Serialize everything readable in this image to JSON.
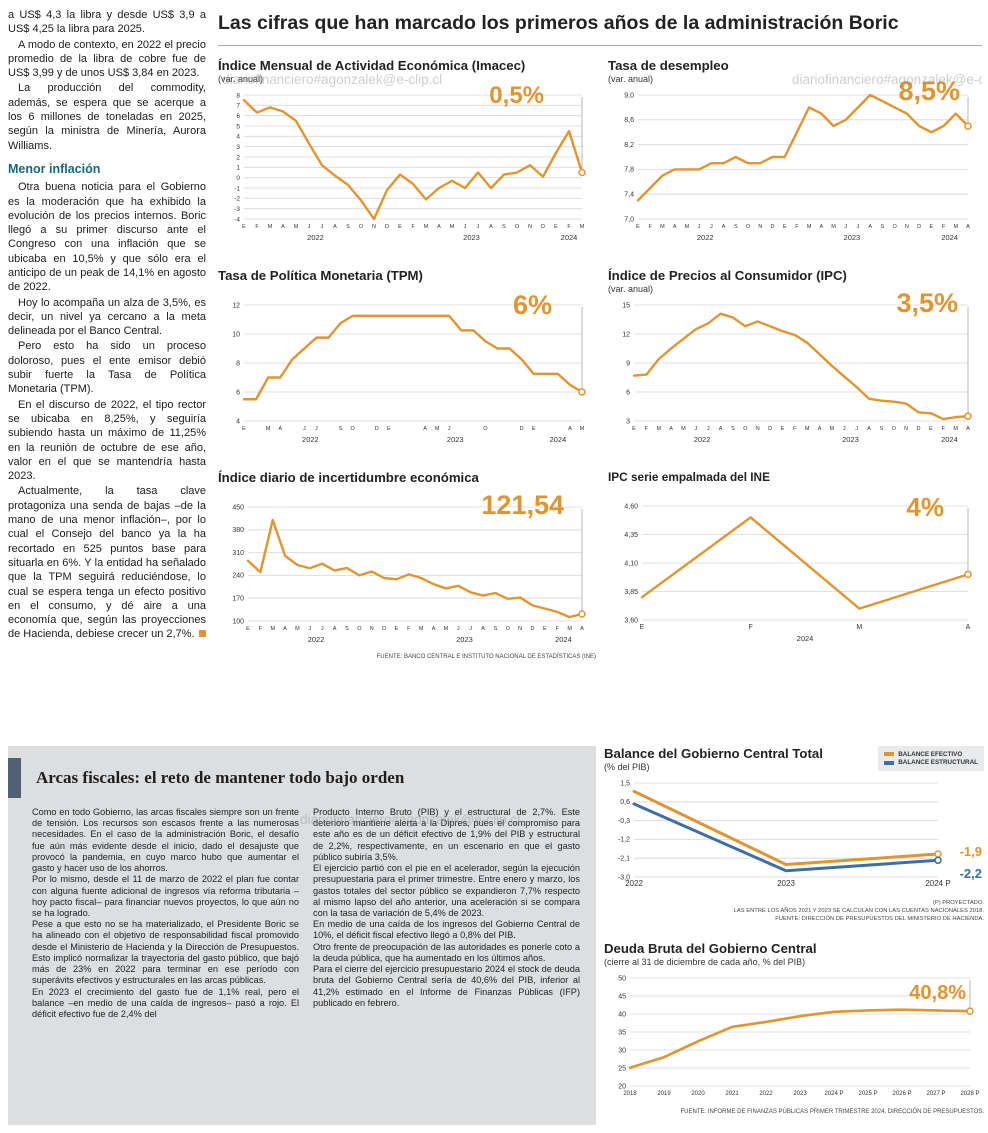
{
  "page": {
    "main_title": "Las cifras que han marcado los primeros años de la administración Boric",
    "watermark": "diariofinanciero#agonzalek@e-clip.cl"
  },
  "left_column": {
    "paragraphs_top": [
      "a US$ 4,3 la libra y desde US$ 3,9 a US$ 4,25 la libra para 2025.",
      "A modo de contexto, en 2022 el precio promedio de la libra de cobre fue de US$ 3,99 y de unos US$ 3,84 en 2023.",
      "La producción del commodity, además, se espera que se acerque a los 6 millones de toneladas en 2025, según la ministra de Minería, Aurora Williams."
    ],
    "header": "Menor inflación",
    "paragraphs_bottom": [
      "Otra buena noticia para el Gobierno es la moderación que ha exhibido la evolución de los precios internos. Boric llegó a su primer discurso ante el Congreso con una inflación que se ubicaba en 10,5% y que sólo era el anticipo de un peak de 14,1% en agosto de 2022.",
      "Hoy lo acompaña un alza de 3,5%, es decir, un nivel ya cercano a la meta delineada por el Banco Central.",
      "Pero esto ha sido un proceso doloroso, pues el ente emisor debió subir fuerte la Tasa de Política Monetaria (TPM).",
      "En el discurso de 2022, el tipo rector se ubicaba en 8,25%, y seguiría subiendo hasta un máximo de 11,25% en la reunión de octubre de ese año, valor en el que se mantendría hasta 2023.",
      "Actualmente, la tasa clave protagoniza una senda de bajas –de la mano de una menor inflación–, por lo cual el Consejo del banco ya la ha recortado en 525 puntos base para situarla en 6%. Y la entidad ha señalado que la TPM seguirá reduciéndose, lo cual se espera tenga un efecto positivo en el consumo, y dé aire a una economía que, según las proyecciones de Hacienda, debiese crecer un 2,7%."
    ]
  },
  "fiscal_box": {
    "title": "Arcas fiscales: el reto de mantener todo bajo orden",
    "col1": [
      "Como en todo Gobierno, las arcas fiscales siempre son un frente de tensión. Los recursos son escasos frente a las numerosas necesidades. En el caso de la administración Boric, el desafío fue aún más evidente desde el inicio, dado el desajuste que provocó la pandemia, en cuyo marco hubo que aumentar el gasto y hacer uso de los ahorros.",
      "Por lo mismo, desde el 11 de marzo de 2022 el plan fue contar con alguna fuente adicional de ingresos vía reforma tributaria –hoy pacto fiscal– para financiar nuevos proyectos, lo que aún no se ha logrado.",
      "Pese a que esto no se ha materializado, el Presidente Boric se ha alineado con el objetivo de responsabilidad fiscal promovido desde el Ministerio de Hacienda y la Dirección de Presupuestos. Esto implicó normalizar la trayectoria del gasto público, que bajó más de 23% en 2022 para terminar en ese período con superávits efectivos y estructurales en las arcas públicas.",
      "En 2023 el crecimiento del gasto fue de 1,1% real, pero el balance –en medio de una caída de ingresos– pasó a rojo. El déficit efectivo fue de 2,4% del"
    ],
    "col2": [
      "Producto Interno Bruto (PIB) y el estructural de 2,7%. Este deterioro mantiene alerta a la Dipres, pues el compromiso para este año es de un déficit efectivo de 1,9% del PIB y estructural de 2,2%, respectivamente, en un escenario en que el gasto público subiría 3,5%.",
      "El ejercicio partió con el pie en el acelerador, según la ejecución presupuestaria para el primer trimestre. Entre enero y marzo, los gastos totales del sector público se expandieron 7,7% respecto al mismo lapso del año anterior, una aceleración si se compara con la tasa de variación de 5,4% de 2023.",
      "En medio de una caída de los ingresos del Gobierno Central de 10%, el déficit fiscal efectivo llegó a 0,8% del PIB.",
      "Otro frente de preocupación de las autoridades es ponerle coto a la deuda pública, que ha aumentado en los últimos años.",
      "Para el cierre del ejercicio presupuestario 2024 el stock de deuda bruta del Gobierno Central sería de 40,6% del PIB, inferior al 41,2% estimado en el Informe de Finanzas Públicas (IFP) publicado en febrero."
    ]
  },
  "colors": {
    "orange": "#df9530",
    "blue": "#3d6ea5",
    "teal": "#15687c",
    "slate": "#4f6173"
  },
  "chart_data": [
    {
      "type": "line",
      "title": "Índice Mensual de Actividad Económica (Imacec)",
      "subtitle": "(var. anual)",
      "highlight": "0,5%",
      "ylim": [
        -4,
        8
      ],
      "ml": 26,
      "yfs": 6.5,
      "yticks": [
        {
          "v": 8,
          "label": "8"
        },
        {
          "v": 7,
          "label": "7"
        },
        {
          "v": 6,
          "label": "6"
        },
        {
          "v": 5,
          "label": "5"
        },
        {
          "v": 4,
          "label": "4"
        },
        {
          "v": 3,
          "label": "3"
        },
        {
          "v": 2,
          "label": "2"
        },
        {
          "v": 1,
          "label": "1"
        },
        {
          "v": 0,
          "label": "0"
        },
        {
          "v": -1,
          "label": "-1"
        },
        {
          "v": -2,
          "label": "-2"
        },
        {
          "v": -3,
          "label": "-3"
        },
        {
          "v": -4,
          "label": "-4"
        }
      ],
      "x_labels": [
        "E",
        "F",
        "M",
        "A",
        "M",
        "J",
        "J",
        "A",
        "S",
        "O",
        "N",
        "D",
        "E",
        "F",
        "M",
        "A",
        "M",
        "J",
        "J",
        "A",
        "S",
        "O",
        "N",
        "D",
        "E",
        "F",
        "M"
      ],
      "years": [
        {
          "l": "2022",
          "s": 0,
          "e": 11
        },
        {
          "l": "2023",
          "s": 12,
          "e": 23
        },
        {
          "l": "2024",
          "s": 24,
          "e": 26
        }
      ],
      "series": [
        {
          "name": "Imacec",
          "color": "#df9530",
          "values": [
            7.5,
            6.3,
            6.8,
            6.4,
            5.5,
            3.3,
            1.2,
            0.2,
            -0.7,
            -2.2,
            -4.0,
            -1.2,
            0.3,
            -0.6,
            -2.1,
            -1.0,
            -0.3,
            -1.0,
            0.5,
            -1.0,
            0.3,
            0.5,
            1.2,
            0.1,
            2.4,
            4.5,
            0.5
          ]
        }
      ]
    },
    {
      "type": "line",
      "title": "Tasa de desempleo",
      "subtitle": "(var. anual)",
      "highlight": "8,5%",
      "ylim": [
        7.0,
        9.0
      ],
      "ml": 30,
      "yticks": [
        {
          "v": 9.0,
          "label": "9,0"
        },
        {
          "v": 8.6,
          "label": "8,6"
        },
        {
          "v": 8.2,
          "label": "8,2"
        },
        {
          "v": 7.8,
          "label": "7,8"
        },
        {
          "v": 7.4,
          "label": "7,4"
        },
        {
          "v": 7.0,
          "label": "7,0"
        }
      ],
      "x_labels": [
        "E",
        "F",
        "M",
        "A",
        "M",
        "J",
        "J",
        "A",
        "S",
        "O",
        "N",
        "D",
        "E",
        "F",
        "M",
        "A",
        "M",
        "J",
        "J",
        "A",
        "S",
        "O",
        "N",
        "D",
        "E",
        "F",
        "M",
        "A"
      ],
      "years": [
        {
          "l": "2022",
          "s": 0,
          "e": 11
        },
        {
          "l": "2023",
          "s": 12,
          "e": 23
        },
        {
          "l": "2024",
          "s": 24,
          "e": 27
        }
      ],
      "series": [
        {
          "name": "Tasa de desempleo",
          "color": "#df9530",
          "values": [
            7.3,
            7.5,
            7.7,
            7.8,
            7.8,
            7.8,
            7.9,
            7.9,
            8.0,
            7.9,
            7.9,
            8.0,
            8.0,
            8.4,
            8.8,
            8.7,
            8.5,
            8.6,
            8.8,
            9.0,
            8.9,
            8.8,
            8.7,
            8.5,
            8.4,
            8.5,
            8.7,
            8.5
          ]
        }
      ]
    },
    {
      "type": "line",
      "title": "Tasa de Política Monetaria (TPM)",
      "highlight": "6%",
      "ylim": [
        4,
        12
      ],
      "ml": 26,
      "yticks": [
        {
          "v": 12,
          "label": "12"
        },
        {
          "v": 10,
          "label": "10"
        },
        {
          "v": 8,
          "label": "8"
        },
        {
          "v": 6,
          "label": "6"
        },
        {
          "v": 4,
          "label": "4"
        }
      ],
      "x_labels": [
        "E",
        "",
        "M",
        "A",
        "",
        "J",
        "J",
        "",
        "S",
        "O",
        "",
        "D",
        "E",
        "",
        "",
        "A",
        "M",
        "J",
        "",
        "",
        "O",
        "",
        "",
        "D",
        "E",
        "",
        "",
        "A",
        "M"
      ],
      "years": [
        {
          "l": "2022",
          "s": 0,
          "e": 11
        },
        {
          "l": "2023",
          "s": 12,
          "e": 23
        },
        {
          "l": "2024",
          "s": 24,
          "e": 28
        }
      ],
      "series": [
        {
          "name": "TPM",
          "color": "#df9530",
          "values": [
            5.5,
            5.5,
            7.0,
            7.0,
            8.25,
            9.0,
            9.75,
            9.75,
            10.75,
            11.25,
            11.25,
            11.25,
            11.25,
            11.25,
            11.25,
            11.25,
            11.25,
            11.25,
            10.25,
            10.25,
            9.5,
            9.0,
            9.0,
            8.25,
            7.25,
            7.25,
            7.25,
            6.5,
            6.0
          ]
        }
      ]
    },
    {
      "type": "line",
      "title": "Índice de Precios al Consumidor (IPC)",
      "subtitle": "(var. anual)",
      "highlight": "3,5%",
      "ylim": [
        3,
        15
      ],
      "ml": 26,
      "yticks": [
        {
          "v": 15,
          "label": "15"
        },
        {
          "v": 12,
          "label": "12"
        },
        {
          "v": 9,
          "label": "9"
        },
        {
          "v": 6,
          "label": "6"
        },
        {
          "v": 3,
          "label": "3"
        }
      ],
      "x_labels": [
        "E",
        "F",
        "M",
        "A",
        "M",
        "J",
        "J",
        "A",
        "S",
        "O",
        "N",
        "D",
        "E",
        "F",
        "M",
        "A",
        "M",
        "J",
        "J",
        "A",
        "S",
        "O",
        "N",
        "D",
        "E",
        "F",
        "M",
        "A"
      ],
      "years": [
        {
          "l": "2022",
          "s": 0,
          "e": 11
        },
        {
          "l": "2023",
          "s": 12,
          "e": 23
        },
        {
          "l": "2024",
          "s": 24,
          "e": 27
        }
      ],
      "series": [
        {
          "name": "IPC",
          "color": "#df9530",
          "values": [
            7.7,
            7.8,
            9.4,
            10.5,
            11.5,
            12.5,
            13.1,
            14.1,
            13.7,
            12.8,
            13.3,
            12.8,
            12.3,
            11.9,
            11.1,
            9.9,
            8.7,
            7.6,
            6.5,
            5.3,
            5.1,
            5.0,
            4.8,
            3.9,
            3.8,
            3.2,
            3.4,
            3.5
          ]
        }
      ]
    },
    {
      "type": "line",
      "title": "Índice diario de incertidumbre económica",
      "highlight": "121,54",
      "ylim": [
        100,
        450
      ],
      "ml": 30,
      "yticks": [
        {
          "v": 450,
          "label": "450"
        },
        {
          "v": 380,
          "label": "380"
        },
        {
          "v": 310,
          "label": "310"
        },
        {
          "v": 240,
          "label": "240"
        },
        {
          "v": 170,
          "label": "170"
        },
        {
          "v": 100,
          "label": "100"
        }
      ],
      "x_labels": [
        "E",
        "F",
        "M",
        "A",
        "M",
        "J",
        "J",
        "A",
        "S",
        "O",
        "N",
        "D",
        "E",
        "F",
        "M",
        "A",
        "M",
        "J",
        "J",
        "A",
        "S",
        "O",
        "N",
        "D",
        "E",
        "F",
        "M",
        "A"
      ],
      "years": [
        {
          "l": "2022",
          "s": 0,
          "e": 11
        },
        {
          "l": "2023",
          "s": 12,
          "e": 23
        },
        {
          "l": "2024",
          "s": 24,
          "e": 27
        }
      ],
      "series": [
        {
          "name": "Incertidumbre económica",
          "color": "#df9530",
          "values": [
            285,
            250,
            410,
            300,
            272,
            262,
            276,
            255,
            263,
            240,
            252,
            232,
            228,
            243,
            232,
            213,
            200,
            208,
            188,
            178,
            186,
            168,
            172,
            148,
            138,
            128,
            112,
            121.54
          ]
        }
      ],
      "source": "FUENTE: BANCO CENTRAL E INSTITUTO NACIONAL DE ESTADÍSTICAS (INE)"
    },
    {
      "type": "line",
      "title": "IPC serie empalmada del INE",
      "highlight": "4%",
      "ylim": [
        3.6,
        4.6
      ],
      "ml": 34,
      "xfs": 7,
      "yticks": [
        {
          "v": 4.6,
          "label": "4,60"
        },
        {
          "v": 4.35,
          "label": "4,35"
        },
        {
          "v": 4.1,
          "label": "4,10"
        },
        {
          "v": 3.85,
          "label": "3,85"
        },
        {
          "v": 3.6,
          "label": "3,60"
        }
      ],
      "x_labels": [
        "E",
        "F",
        "M",
        "A"
      ],
      "years": [
        {
          "l": "2024",
          "s": 0,
          "e": 3
        }
      ],
      "series": [
        {
          "name": "IPC empalmado",
          "color": "#df9530",
          "values": [
            3.8,
            4.5,
            3.7,
            4.0
          ]
        }
      ]
    },
    {
      "type": "line",
      "title": "Balance del Gobierno Central Total",
      "subtitle": "(% del PIB)",
      "highlight": "-1,9",
      "highlight2": "-2,2",
      "legend": [
        "BALANCE EFECTIVO",
        "BALANCE ESTRUCTURAL"
      ],
      "ylim": [
        -3.0,
        1.5
      ],
      "ml": 30,
      "mr": 46,
      "xfs": 8,
      "lw": 3,
      "endline": false,
      "yticks": [
        {
          "v": 1.5,
          "label": "1,5"
        },
        {
          "v": 0.6,
          "label": "0,6"
        },
        {
          "v": -0.3,
          "label": "-0,3"
        },
        {
          "v": -1.2,
          "label": "-1,2"
        },
        {
          "v": -2.1,
          "label": "-2,1"
        },
        {
          "v": -3.0,
          "label": "-3,0"
        }
      ],
      "x_labels": [
        "2022",
        "2023",
        "2024 P"
      ],
      "series": [
        {
          "name": "Balance efectivo",
          "color": "#df9530",
          "values": [
            1.1,
            -2.4,
            -1.9
          ]
        },
        {
          "name": "Balance estructural",
          "color": "#3d6ea5",
          "values": [
            0.5,
            -2.7,
            -2.2
          ]
        }
      ],
      "notes": [
        "(P) PROYECTADO.",
        "LAS ENTRE LOS AÑOS 2021 Y 2023 SE CALCULAN  CON LAS CUENTAS NACIONALES 2018.",
        "FUENTE: DIRECCIÓN DE PRESUPUESTOS DEL MINISTERIO DE HACIENDA."
      ]
    },
    {
      "type": "line",
      "title": "Deuda Bruta del Gobierno Central",
      "subtitle": "(cierre al 31 de diciembre de cada año, % del PIB)",
      "highlight": "40,8%",
      "ylim": [
        20,
        50
      ],
      "ml": 26,
      "xfs": 6,
      "lw": 2.6,
      "yticks": [
        {
          "v": 50,
          "label": "50"
        },
        {
          "v": 45,
          "label": "45"
        },
        {
          "v": 40,
          "label": "40"
        },
        {
          "v": 35,
          "label": "35"
        },
        {
          "v": 30,
          "label": "30"
        },
        {
          "v": 25,
          "label": "25"
        },
        {
          "v": 20,
          "label": "20"
        }
      ],
      "x_labels": [
        "2018",
        "2019",
        "2020",
        "2021",
        "2022",
        "2023",
        "2024 P",
        "2025 P",
        "2026 P",
        "2027 P",
        "2028 P"
      ],
      "series": [
        {
          "name": "Deuda bruta",
          "color": "#df9530",
          "values": [
            25.1,
            28.0,
            32.4,
            36.4,
            37.8,
            39.4,
            40.6,
            41.0,
            41.2,
            41.0,
            40.8
          ]
        }
      ],
      "source": "FUENTE: INFORME DE FINANZAS PÚBLICAS PRIMER TRIMESTRE 2024, DIRECCIÓN DE PRESUPUESTOS."
    }
  ]
}
